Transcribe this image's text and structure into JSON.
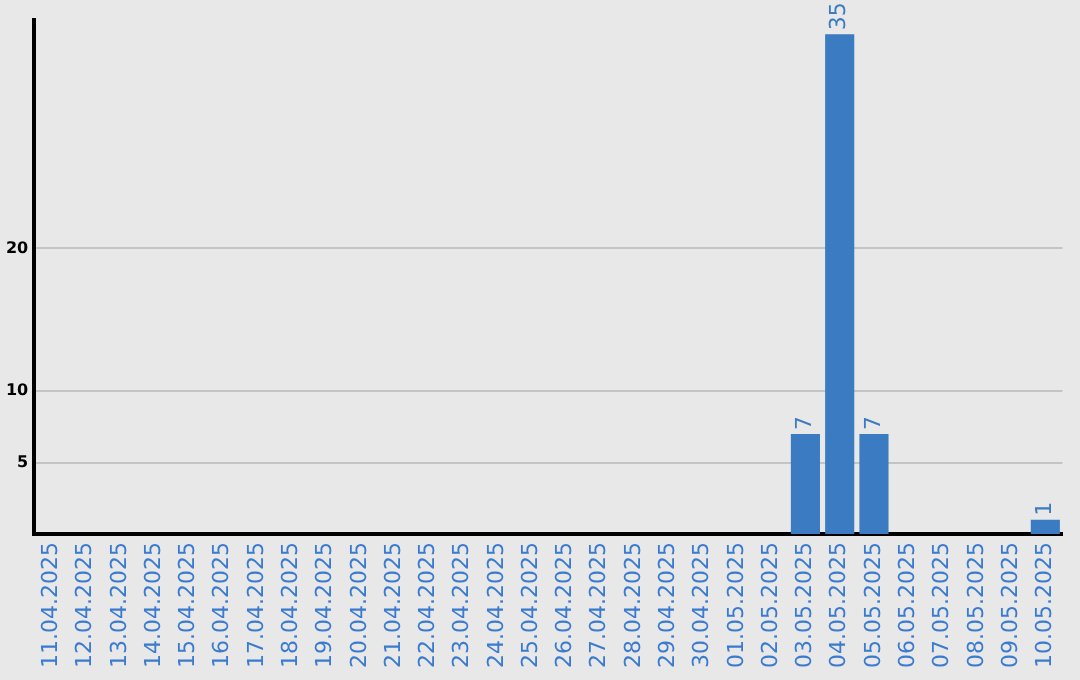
{
  "chart_data": {
    "type": "bar",
    "categories": [
      "11.04.2025",
      "12.04.2025",
      "13.04.2025",
      "14.04.2025",
      "15.04.2025",
      "16.04.2025",
      "17.04.2025",
      "18.04.2025",
      "19.04.2025",
      "20.04.2025",
      "21.04.2025",
      "22.04.2025",
      "23.04.2025",
      "24.04.2025",
      "25.04.2025",
      "26.04.2025",
      "27.04.2025",
      "28.04.2025",
      "29.04.2025",
      "30.04.2025",
      "01.05.2025",
      "02.05.2025",
      "03.05.2025",
      "04.05.2025",
      "05.05.2025",
      "06.05.2025",
      "07.05.2025",
      "08.05.2025",
      "09.05.2025",
      "10.05.2025"
    ],
    "values": [
      0,
      0,
      0,
      0,
      0,
      0,
      0,
      0,
      0,
      0,
      0,
      0,
      0,
      0,
      0,
      0,
      0,
      0,
      0,
      0,
      0,
      0,
      7,
      35,
      7,
      0,
      0,
      0,
      0,
      1
    ],
    "value_labels": [
      null,
      null,
      null,
      null,
      null,
      null,
      null,
      null,
      null,
      null,
      null,
      null,
      null,
      null,
      null,
      null,
      null,
      null,
      null,
      null,
      null,
      null,
      "7",
      "35",
      "7",
      null,
      null,
      null,
      null,
      "1"
    ],
    "color": "#3a7bc2",
    "ylim": [
      0,
      36
    ],
    "yticks": [
      5,
      10,
      20
    ],
    "grid": "y",
    "legend": false
  }
}
